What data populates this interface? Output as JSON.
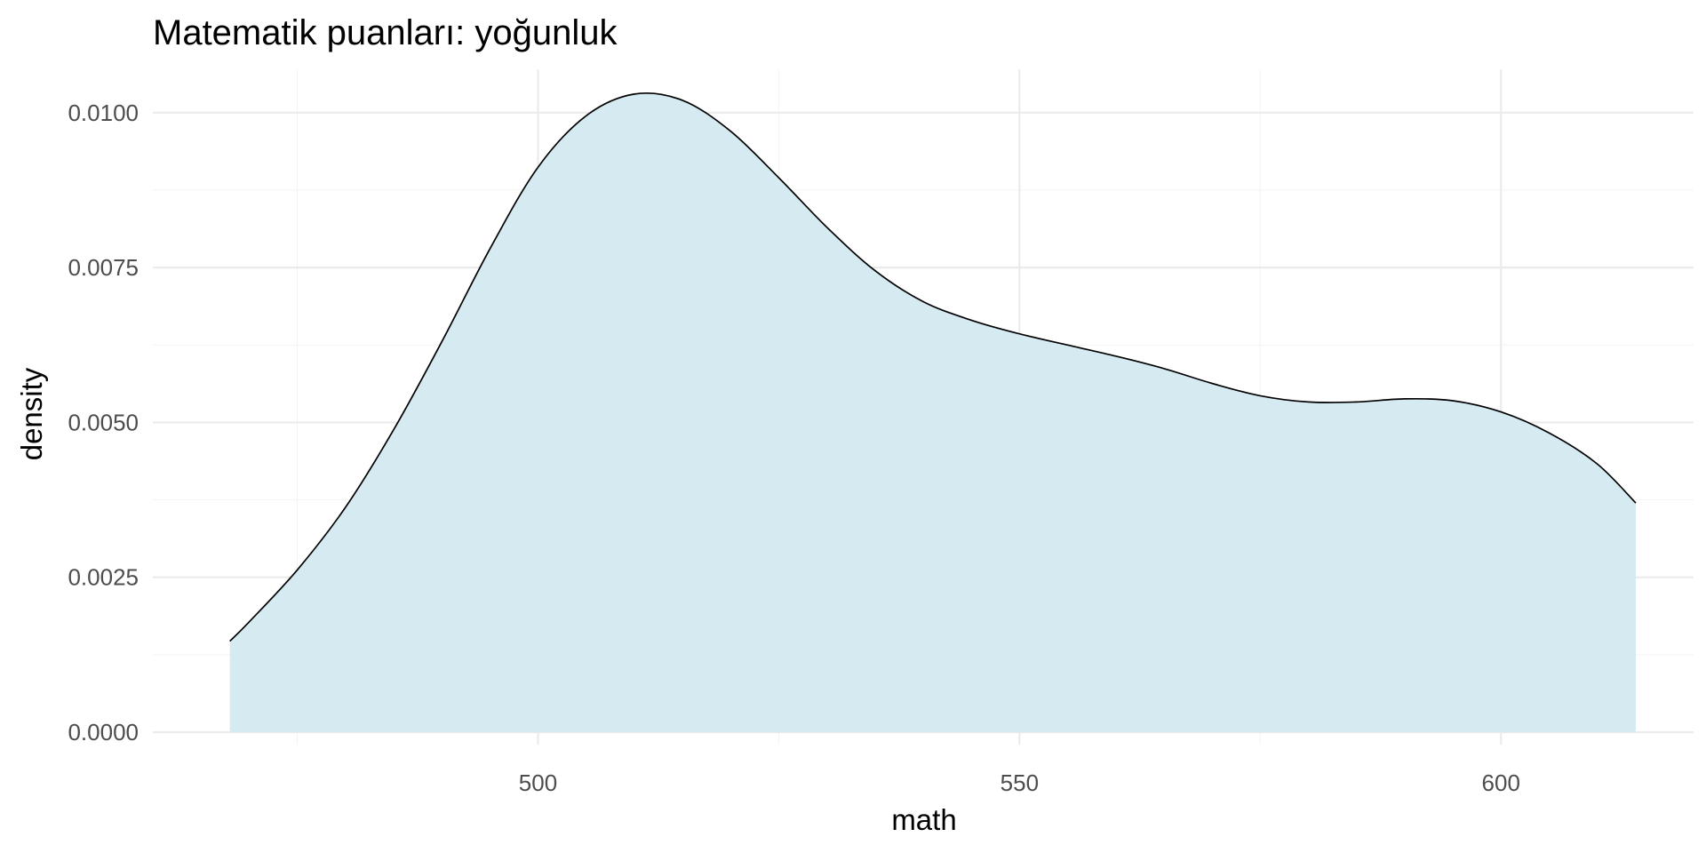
{
  "chart_data": {
    "type": "area",
    "title": "Matematik puanları: yoğunluk",
    "xlabel": "math",
    "ylabel": "density",
    "xlim": [
      460,
      620
    ],
    "ylim": [
      -0.0002,
      0.0107
    ],
    "x_ticks": [
      500,
      550,
      600
    ],
    "x_tick_labels": [
      "500",
      "550",
      "600"
    ],
    "y_ticks": [
      0.0,
      0.0025,
      0.005,
      0.0075,
      0.01
    ],
    "y_tick_labels": [
      "0.0000",
      "0.0025",
      "0.0050",
      "0.0075",
      "0.0100"
    ],
    "grid": true,
    "legend": "none",
    "fill_color": "#d6eaf1",
    "line_color": "#000000",
    "series": [
      {
        "x": [
          468,
          470,
          475,
          480,
          485,
          490,
          495,
          500,
          505,
          510,
          515,
          520,
          525,
          530,
          535,
          540,
          545,
          550,
          555,
          560,
          565,
          570,
          575,
          580,
          585,
          590,
          595,
          600,
          605,
          610,
          614
        ],
        "values": [
          0.00147,
          0.00178,
          0.00262,
          0.00363,
          0.00488,
          0.0063,
          0.0078,
          0.00912,
          0.00995,
          0.0103,
          0.0102,
          0.0097,
          0.00895,
          0.00815,
          0.00745,
          0.00695,
          0.00665,
          0.00643,
          0.00625,
          0.00607,
          0.00587,
          0.00563,
          0.00543,
          0.00533,
          0.00533,
          0.00538,
          0.00535,
          0.00517,
          0.00483,
          0.00433,
          0.0037
        ]
      }
    ]
  }
}
